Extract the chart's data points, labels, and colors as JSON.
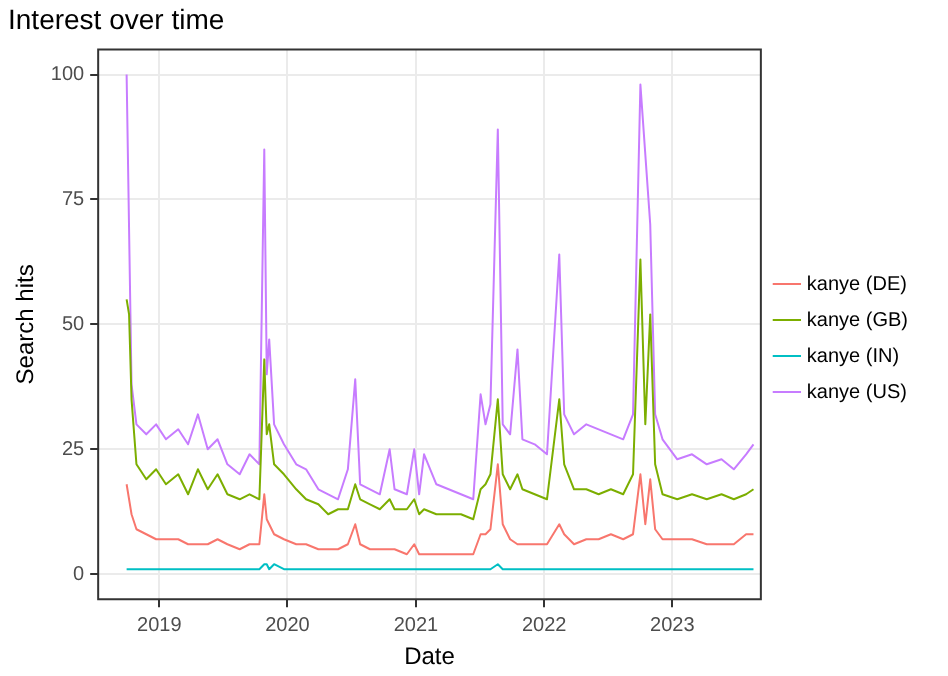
{
  "chart_data": {
    "type": "line",
    "title": "Interest over time",
    "xlabel": "Date",
    "ylabel": "Search hits",
    "x": [
      "2018-09-30",
      "2018-10-07",
      "2018-10-14",
      "2018-10-28",
      "2018-11-25",
      "2018-12-23",
      "2019-01-20",
      "2019-02-24",
      "2019-03-24",
      "2019-04-21",
      "2019-05-19",
      "2019-06-16",
      "2019-07-14",
      "2019-08-18",
      "2019-09-15",
      "2019-10-13",
      "2019-10-27",
      "2019-11-03",
      "2019-11-10",
      "2019-11-24",
      "2019-12-22",
      "2020-01-26",
      "2020-02-23",
      "2020-03-29",
      "2020-04-26",
      "2020-05-24",
      "2020-06-21",
      "2020-07-12",
      "2020-07-26",
      "2020-08-23",
      "2020-09-20",
      "2020-10-18",
      "2020-11-01",
      "2020-12-06",
      "2020-12-27",
      "2021-01-10",
      "2021-01-24",
      "2021-02-28",
      "2021-04-04",
      "2021-05-09",
      "2021-06-13",
      "2021-07-04",
      "2021-07-18",
      "2021-08-01",
      "2021-08-22",
      "2021-09-05",
      "2021-09-26",
      "2021-10-17",
      "2021-10-31",
      "2021-12-05",
      "2022-01-09",
      "2022-02-13",
      "2022-02-27",
      "2022-03-27",
      "2022-05-01",
      "2022-06-05",
      "2022-07-10",
      "2022-08-14",
      "2022-09-11",
      "2022-10-02",
      "2022-10-16",
      "2022-10-30",
      "2022-11-13",
      "2022-12-04",
      "2023-01-15",
      "2023-02-26",
      "2023-04-09",
      "2023-05-21",
      "2023-06-25",
      "2023-07-30",
      "2023-08-20"
    ],
    "series": [
      {
        "name": "kanye (DE)",
        "color": "#f8766d",
        "values": [
          18,
          15,
          12,
          9,
          8,
          7,
          7,
          7,
          6,
          6,
          6,
          7,
          6,
          5,
          6,
          6,
          16,
          11,
          10,
          8,
          7,
          6,
          6,
          5,
          5,
          5,
          6,
          10,
          6,
          5,
          5,
          5,
          5,
          4,
          6,
          4,
          4,
          4,
          4,
          4,
          4,
          8,
          8,
          9,
          22,
          10,
          7,
          6,
          6,
          6,
          6,
          10,
          8,
          6,
          7,
          7,
          8,
          7,
          8,
          20,
          10,
          19,
          9,
          7,
          7,
          7,
          6,
          6,
          6,
          8,
          8
        ]
      },
      {
        "name": "kanye (GB)",
        "color": "#7cae00",
        "values": [
          55,
          52,
          35,
          22,
          19,
          21,
          18,
          20,
          16,
          21,
          17,
          20,
          16,
          15,
          16,
          15,
          43,
          28,
          30,
          22,
          20,
          17,
          15,
          14,
          12,
          13,
          13,
          18,
          15,
          14,
          13,
          15,
          13,
          13,
          15,
          12,
          13,
          12,
          12,
          12,
          11,
          17,
          18,
          20,
          35,
          20,
          17,
          20,
          17,
          16,
          15,
          35,
          22,
          17,
          17,
          16,
          17,
          16,
          20,
          63,
          30,
          52,
          22,
          16,
          15,
          16,
          15,
          16,
          15,
          16,
          17
        ]
      },
      {
        "name": "kanye (IN)",
        "color": "#00bfc4",
        "values": [
          1,
          1,
          1,
          1,
          1,
          1,
          1,
          1,
          1,
          1,
          1,
          1,
          1,
          1,
          1,
          1,
          2,
          2,
          1,
          2,
          1,
          1,
          1,
          1,
          1,
          1,
          1,
          1,
          1,
          1,
          1,
          1,
          1,
          1,
          1,
          1,
          1,
          1,
          1,
          1,
          1,
          1,
          1,
          1,
          2,
          1,
          1,
          1,
          1,
          1,
          1,
          1,
          1,
          1,
          1,
          1,
          1,
          1,
          1,
          1,
          1,
          1,
          1,
          1,
          1,
          1,
          1,
          1,
          1,
          1,
          1
        ]
      },
      {
        "name": "kanye (US)",
        "color": "#c77cff",
        "values": [
          100,
          null,
          38,
          30,
          28,
          30,
          27,
          29,
          26,
          32,
          25,
          27,
          22,
          20,
          24,
          22,
          85,
          40,
          47,
          30,
          26,
          22,
          21,
          17,
          16,
          15,
          21,
          39,
          18,
          17,
          16,
          25,
          17,
          16,
          25,
          16,
          24,
          18,
          17,
          16,
          15,
          36,
          30,
          34,
          89,
          30,
          28,
          45,
          27,
          26,
          24,
          64,
          32,
          28,
          30,
          29,
          28,
          27,
          32,
          98,
          null,
          70,
          32,
          27,
          23,
          24,
          22,
          23,
          21,
          24,
          26
        ]
      }
    ],
    "xlim": [
      "2018-07-11",
      "2023-09-10"
    ],
    "xticks": [
      {
        "value": "2019-01-01",
        "label": "2019"
      },
      {
        "value": "2020-01-01",
        "label": "2020"
      },
      {
        "value": "2021-01-01",
        "label": "2021"
      },
      {
        "value": "2022-01-01",
        "label": "2022"
      },
      {
        "value": "2023-01-01",
        "label": "2023"
      }
    ],
    "ylim": [
      -5,
      105
    ],
    "yticks": [
      0,
      25,
      50,
      75,
      100
    ],
    "grid": true,
    "legend": "right",
    "marker": "none",
    "line_style": "solid"
  }
}
